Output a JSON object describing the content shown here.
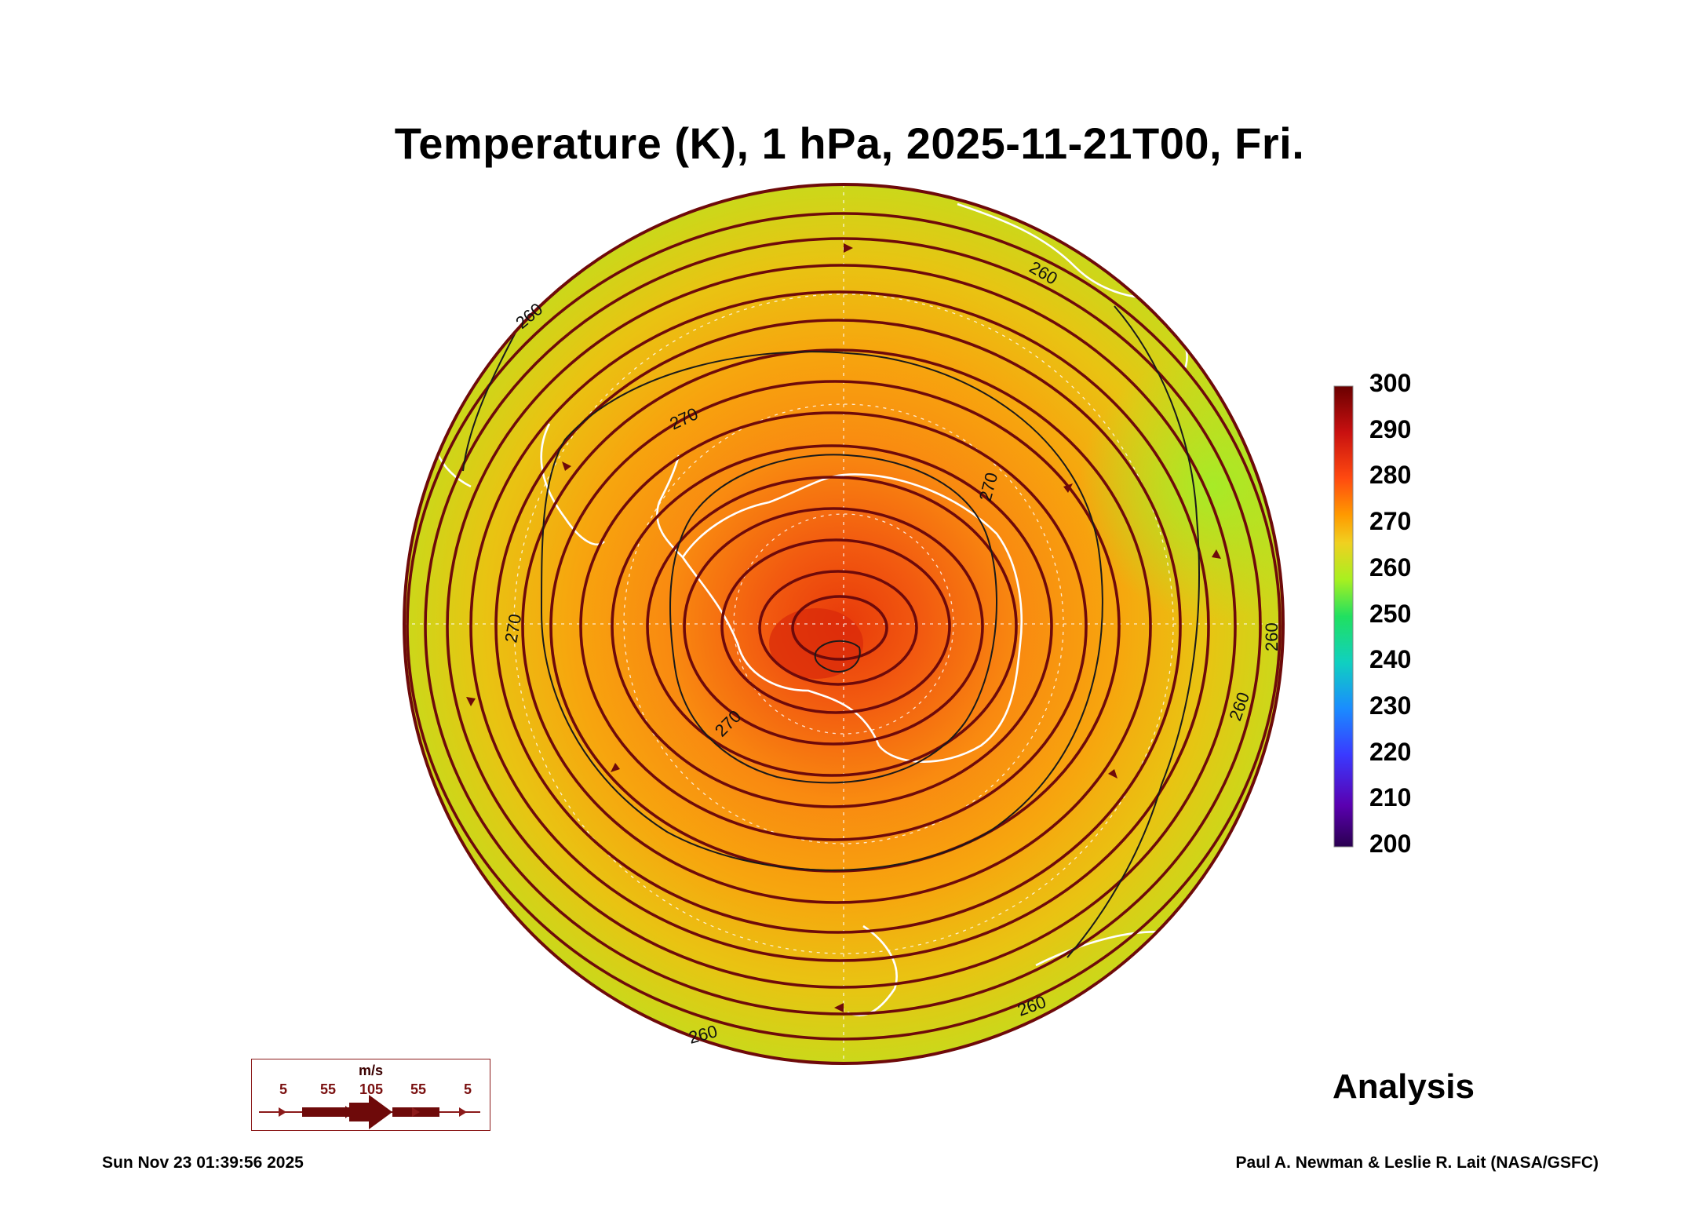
{
  "title": "Temperature (K), 1 hPa, 2025-11-21T00, Fri.",
  "colorbar": {
    "ticks": [
      "300",
      "290",
      "280",
      "270",
      "260",
      "250",
      "240",
      "230",
      "220",
      "210",
      "200"
    ],
    "range": [
      200,
      300
    ],
    "colors": [
      "#2a0050",
      "#5a00b0",
      "#3a3aff",
      "#1a8cff",
      "#10d0c0",
      "#20e060",
      "#a8f020",
      "#f0d020",
      "#ff9a00",
      "#ff4a10",
      "#c81010",
      "#6a0000"
    ]
  },
  "contour_labels": [
    "260",
    "270",
    "270",
    "270",
    "270",
    "260",
    "260",
    "260",
    "260",
    "260"
  ],
  "wind_legend": {
    "unit": "m/s",
    "labels": [
      "5",
      "55",
      "105",
      "55",
      "5"
    ]
  },
  "analysis_label": "Analysis",
  "footer": {
    "timestamp": "Sun Nov 23 01:39:56 2025",
    "credit": "Paul A. Newman & Leslie R. Lait (NASA/GSFC)"
  },
  "colors": {
    "streamline": "#6e0a0a",
    "coastline": "#ffffff",
    "contour": "#1a1a1a"
  }
}
